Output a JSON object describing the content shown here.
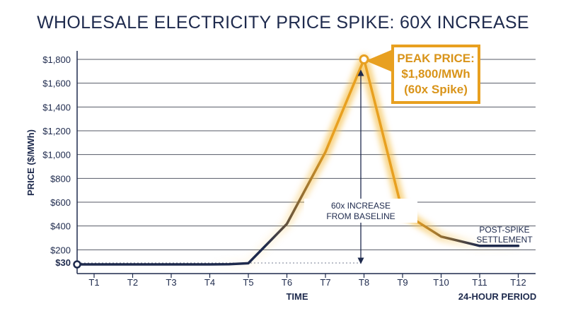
{
  "chart_data": {
    "type": "line",
    "title": "WHOLESALE ELECTRICITY PRICE SPIKE: 60X INCREASE",
    "xlabel": "TIME",
    "x_end_label": "24-HOUR PERIOD",
    "ylabel": "PRICE ($/MWh)",
    "ylim": [
      0,
      1800
    ],
    "yticks": [
      "$200",
      "$400",
      "$600",
      "$800",
      "$1,000",
      "$1,200",
      "$1,400",
      "$1,600",
      "$1,800"
    ],
    "baseline_label": "$30",
    "categories": [
      "T1",
      "T2",
      "T3",
      "T4",
      "T5",
      "T6",
      "T7",
      "T8",
      "T9",
      "T10",
      "T11",
      "T12"
    ],
    "x": [
      0,
      0.5,
      1,
      2,
      3,
      4,
      4.5,
      5,
      6,
      7,
      8,
      9,
      10,
      11,
      12
    ],
    "values": [
      30,
      30,
      30,
      30,
      30,
      30,
      32,
      40,
      380,
      1000,
      1800,
      480,
      270,
      190,
      190
    ],
    "grid": true,
    "annotations": {
      "peak_lines": [
        "PEAK PRICE:",
        "$1,800/MWh",
        "(60x Spike)"
      ],
      "increase_lines": [
        "60x INCREASE",
        "FROM BASELINE"
      ],
      "settlement_lines": [
        "POST-SPIKE",
        "SETTLEMENT"
      ]
    },
    "colors": {
      "navy": "#1e2a4d",
      "orange": "#e8a020",
      "grid": "#555a66"
    }
  }
}
